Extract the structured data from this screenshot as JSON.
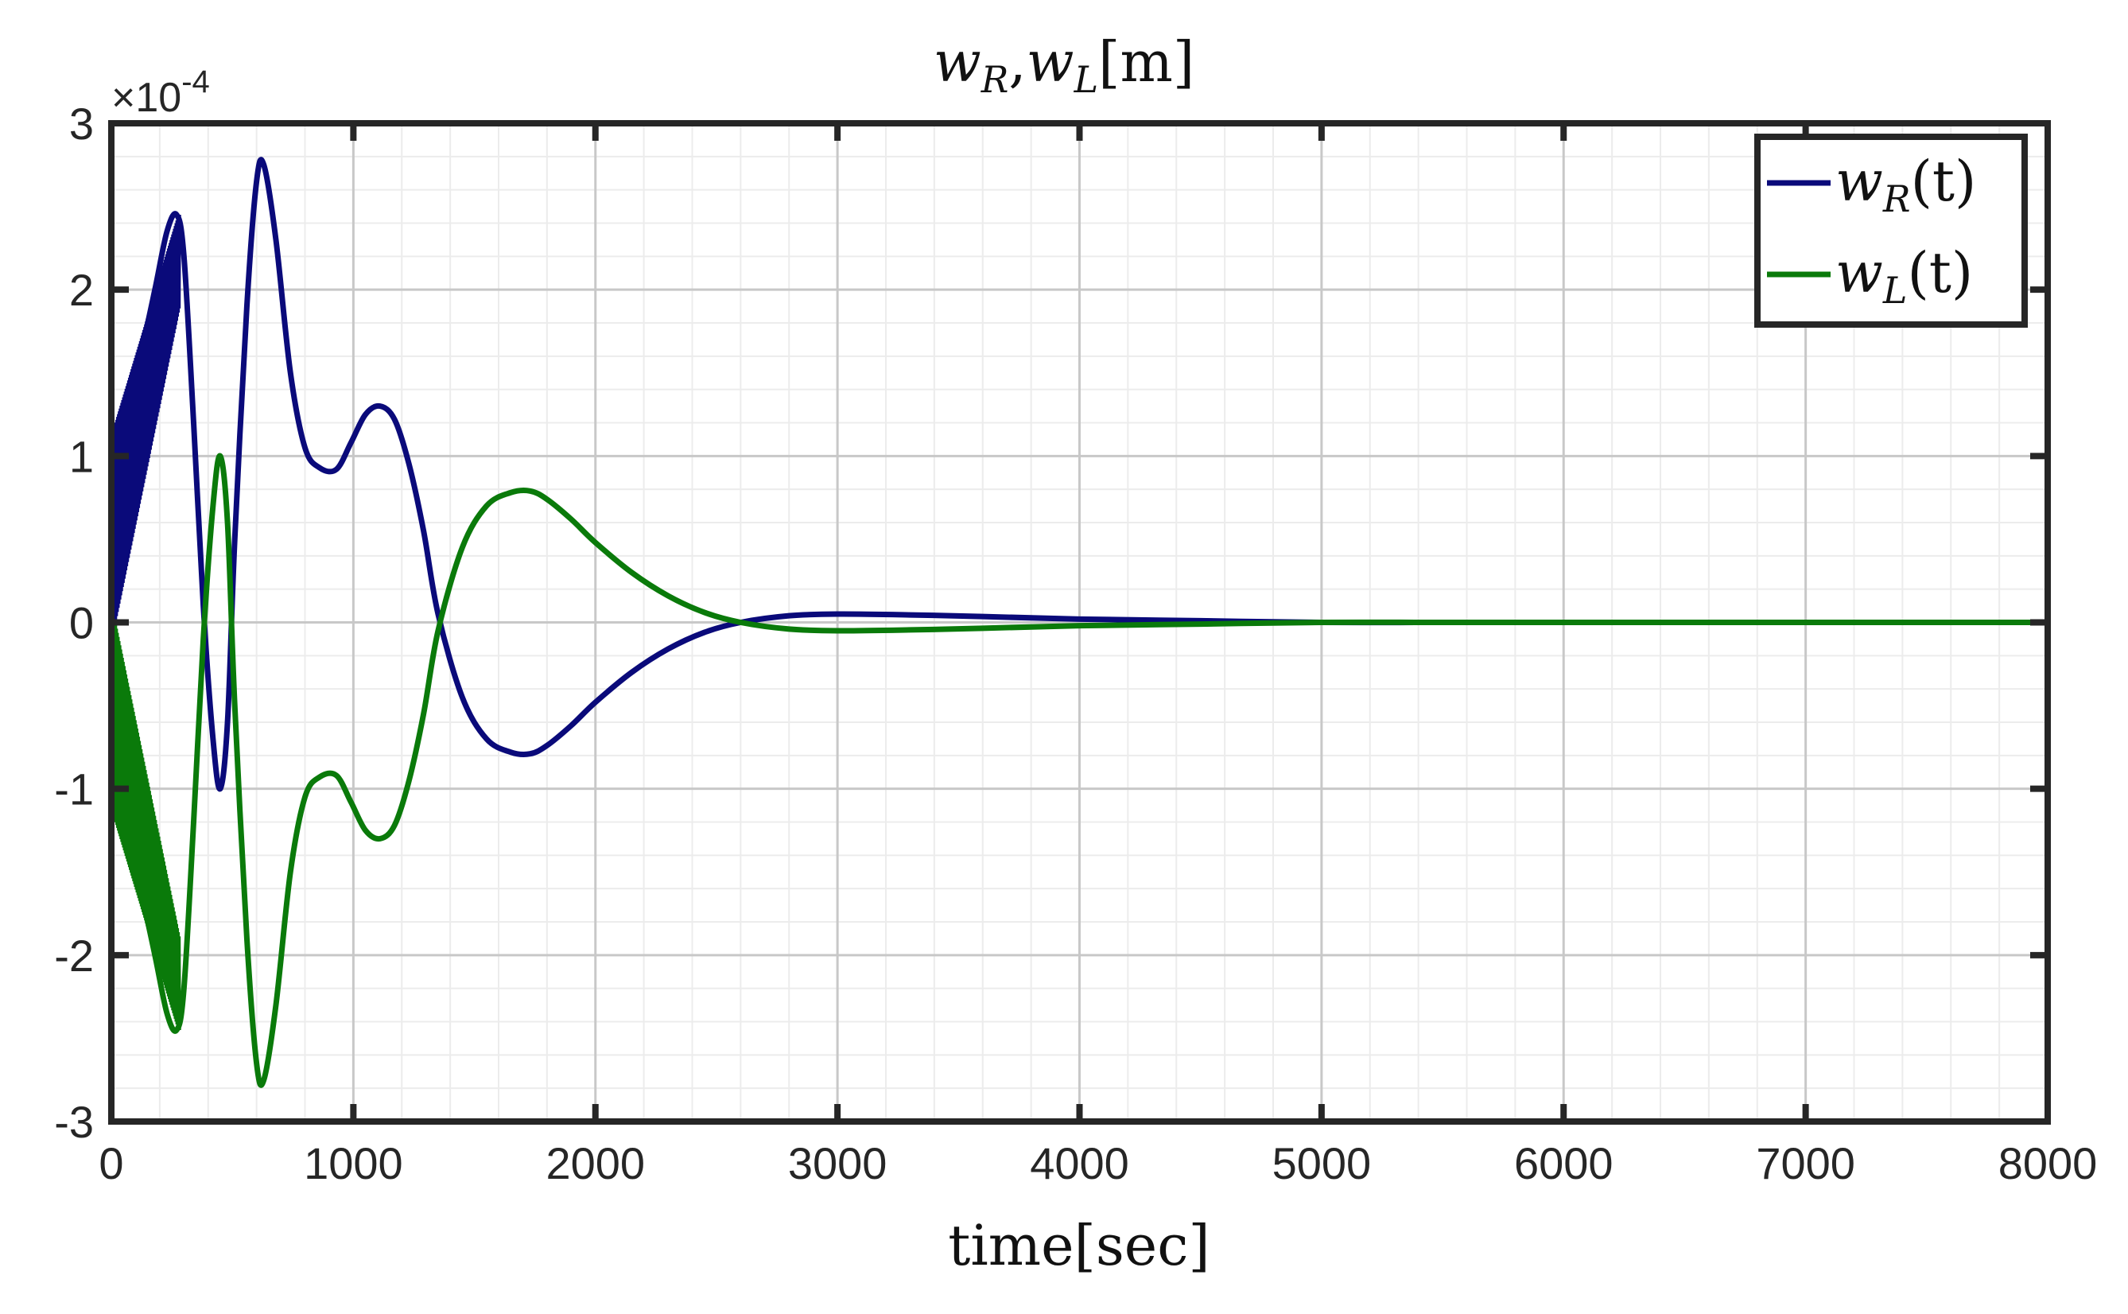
{
  "chart_data": {
    "type": "line",
    "title": "w_R,w_L[m]",
    "title_parts": {
      "w1": "w",
      "s1": "R",
      "sep": ",",
      "w2": "w",
      "s2": "L",
      "unit": "[m]"
    },
    "xlabel": "time[sec]",
    "ylabel": "",
    "exponent_label": {
      "prefix": "×10",
      "power": "-4"
    },
    "xlim": [
      0,
      8000
    ],
    "ylim": [
      -3,
      3
    ],
    "y_scale_factor": 0.0001,
    "xticks": [
      0,
      1000,
      2000,
      3000,
      4000,
      5000,
      6000,
      7000,
      8000
    ],
    "xtick_labels": [
      "0",
      "1000",
      "2000",
      "3000",
      "4000",
      "5000",
      "6000",
      "7000",
      "8000"
    ],
    "yticks": [
      -3,
      -2,
      -1,
      0,
      1,
      2,
      3
    ],
    "ytick_labels": [
      "-3",
      "-2",
      "-1",
      "0",
      "1",
      "2",
      "3"
    ],
    "grid": true,
    "minor_grid": true,
    "legend_position": "top-right",
    "series": [
      {
        "name": "w_R(t)",
        "legend_parts": {
          "w": "w",
          "sub": "R",
          "arg": "(t)"
        },
        "color": "#0a0a7a",
        "x": [
          0,
          60,
          120,
          180,
          230,
          270,
          300,
          340,
          380,
          420,
          450,
          480,
          510,
          560,
          600,
          630,
          680,
          740,
          800,
          860,
          930,
          990,
          1050,
          1110,
          1170,
          1230,
          1290,
          1350,
          1450,
          1550,
          1650,
          1730,
          1800,
          1900,
          2000,
          2150,
          2300,
          2450,
          2600,
          2800,
          3000,
          3300,
          3600,
          4000,
          4500,
          5000,
          5500,
          6000,
          7000,
          8000
        ],
        "y": [
          1.05,
          1.25,
          1.6,
          2.0,
          2.35,
          2.45,
          2.2,
          1.2,
          0.1,
          -0.7,
          -1.0,
          -0.6,
          0.5,
          1.9,
          2.65,
          2.75,
          2.3,
          1.5,
          1.05,
          0.93,
          0.92,
          1.08,
          1.25,
          1.3,
          1.22,
          0.95,
          0.55,
          0.05,
          -0.45,
          -0.7,
          -0.78,
          -0.79,
          -0.74,
          -0.62,
          -0.48,
          -0.3,
          -0.16,
          -0.06,
          0.0,
          0.04,
          0.05,
          0.045,
          0.035,
          0.02,
          0.01,
          0.0,
          0.0,
          0.0,
          0.0,
          0.0
        ],
        "note_high_freq_oscillation": "dense oscillation 0-300 sec"
      },
      {
        "name": "w_L(t)",
        "legend_parts": {
          "w": "w",
          "sub": "L",
          "arg": "(t)"
        },
        "color": "#0a7a0a",
        "x": [
          0,
          60,
          120,
          180,
          230,
          270,
          300,
          340,
          380,
          420,
          450,
          480,
          510,
          560,
          600,
          630,
          680,
          740,
          800,
          860,
          930,
          990,
          1050,
          1110,
          1170,
          1230,
          1290,
          1350,
          1450,
          1550,
          1650,
          1730,
          1800,
          1900,
          2000,
          2150,
          2300,
          2450,
          2600,
          2800,
          3000,
          3300,
          3600,
          4000,
          4500,
          5000,
          5500,
          6000,
          7000,
          8000
        ],
        "y": [
          -1.05,
          -1.25,
          -1.6,
          -2.0,
          -2.35,
          -2.45,
          -2.2,
          -1.2,
          -0.1,
          0.7,
          1.0,
          0.6,
          -0.5,
          -1.9,
          -2.65,
          -2.75,
          -2.3,
          -1.5,
          -1.05,
          -0.93,
          -0.92,
          -1.08,
          -1.25,
          -1.3,
          -1.22,
          -0.95,
          -0.55,
          -0.05,
          0.45,
          0.7,
          0.78,
          0.79,
          0.74,
          0.62,
          0.48,
          0.3,
          0.16,
          0.06,
          0.0,
          -0.04,
          -0.05,
          -0.045,
          -0.035,
          -0.02,
          -0.01,
          0.0,
          0.0,
          0.0,
          0.0,
          0.0
        ]
      }
    ]
  }
}
